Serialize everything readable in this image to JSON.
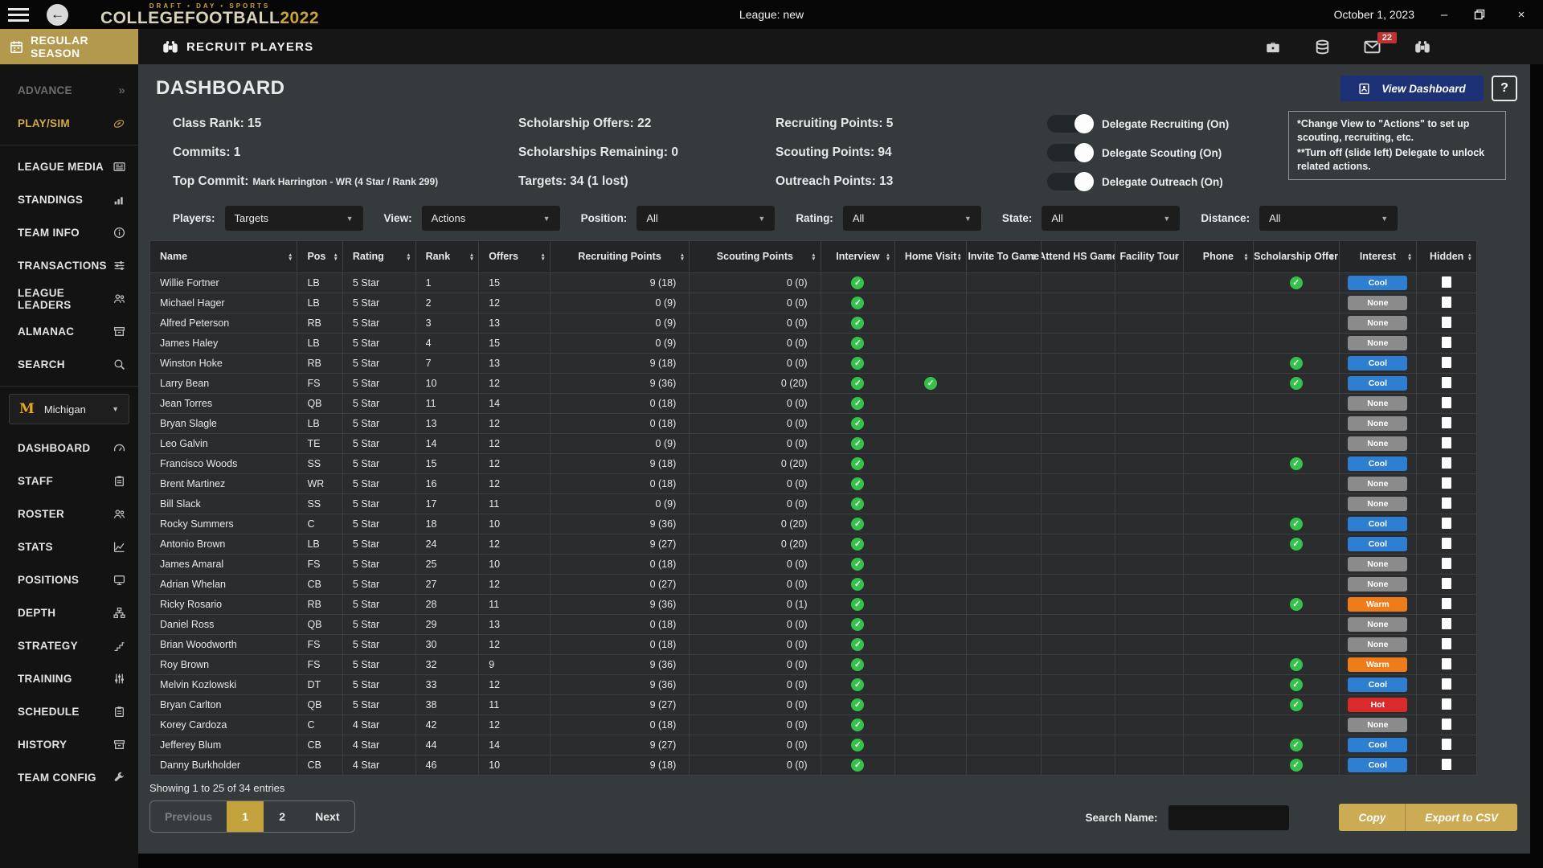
{
  "titlebar": {
    "league_title": "League: new",
    "date": "October 1, 2023"
  },
  "brand": {
    "tagline": "DRAFT • DAY • SPORTS",
    "name": "COLLEGEFOOTBALL",
    "year": "2022"
  },
  "appbar": {
    "season_label": "REGULAR SEASON",
    "page_title": "RECRUIT PLAYERS",
    "mail_badge": "22"
  },
  "sidebar": {
    "advance_label": "ADVANCE",
    "playsim_label": "PLAY/SIM",
    "league_items": [
      {
        "label": "LEAGUE MEDIA",
        "icon": "newspaper-icon"
      },
      {
        "label": "STANDINGS",
        "icon": "bar-chart-icon"
      },
      {
        "label": "TEAM INFO",
        "icon": "info-icon"
      },
      {
        "label": "TRANSACTIONS",
        "icon": "sliders-icon"
      },
      {
        "label": "LEAGUE LEADERS",
        "icon": "people-icon"
      },
      {
        "label": "ALMANAC",
        "icon": "archive-icon"
      },
      {
        "label": "SEARCH",
        "icon": "search-icon"
      }
    ],
    "team_select": {
      "team": "Michigan",
      "logo_letter": "M"
    },
    "team_items": [
      {
        "label": "DASHBOARD",
        "icon": "gauge-icon"
      },
      {
        "label": "STAFF",
        "icon": "clipboard-icon"
      },
      {
        "label": "ROSTER",
        "icon": "people-icon"
      },
      {
        "label": "STATS",
        "icon": "chart-icon"
      },
      {
        "label": "POSITIONS",
        "icon": "monitor-icon"
      },
      {
        "label": "DEPTH",
        "icon": "sitemap-icon"
      },
      {
        "label": "STRATEGY",
        "icon": "strategy-icon"
      },
      {
        "label": "TRAINING",
        "icon": "sliders-vertical-icon"
      },
      {
        "label": "SCHEDULE",
        "icon": "clipboard-icon"
      },
      {
        "label": "HISTORY",
        "icon": "archive-icon"
      },
      {
        "label": "TEAM CONFIG",
        "icon": "wrench-icon"
      }
    ]
  },
  "dashboard": {
    "title": "DASHBOARD",
    "view_dashboard_label": "View Dashboard",
    "help_label": "?",
    "stats_col1": [
      {
        "label": "Class Rank",
        "value": "15"
      },
      {
        "label": "Commits",
        "value": "1"
      },
      {
        "label": "Top Commit",
        "value": "Mark Harrington - WR (4 Star / Rank 299)",
        "small_value": true
      }
    ],
    "stats_col2": [
      {
        "label": "Scholarship Offers",
        "value": "22"
      },
      {
        "label": "Scholarships Remaining",
        "value": "0"
      },
      {
        "label": "Targets",
        "value": "34 (1 lost)"
      }
    ],
    "stats_col3": [
      {
        "label": "Recruiting Points",
        "value": "5"
      },
      {
        "label": "Scouting Points",
        "value": "94"
      },
      {
        "label": "Outreach Points",
        "value": "13"
      }
    ],
    "toggles": [
      {
        "label": "Delegate Recruiting (On)",
        "on": true
      },
      {
        "label": "Delegate Scouting (On)",
        "on": true
      },
      {
        "label": "Delegate Outreach (On)",
        "on": true
      }
    ],
    "notes": [
      "*Change View to \"Actions\" to set up scouting, recruiting, etc.",
      "**Turn off (slide left) Delegate to unlock related actions."
    ]
  },
  "filters": [
    {
      "label": "Players:",
      "value": "Targets"
    },
    {
      "label": "View:",
      "value": "Actions"
    },
    {
      "label": "Position:",
      "value": "All"
    },
    {
      "label": "Rating:",
      "value": "All"
    },
    {
      "label": "State:",
      "value": "All"
    },
    {
      "label": "Distance:",
      "value": "All"
    }
  ],
  "table": {
    "columns": [
      "Name",
      "Pos",
      "Rating",
      "Rank",
      "Offers",
      "Recruiting Points",
      "Scouting Points",
      "Interview",
      "Home Visit",
      "Invite To Game",
      "Attend HS Game",
      "Facility Tour",
      "Phone",
      "Scholarship Offer",
      "Interest",
      "Hidden"
    ],
    "check_color": "#35c24b",
    "interest_colors": {
      "Cool": "#2e7fd1",
      "None": "#8b8b8b",
      "Warm": "#ee7c1b",
      "Hot": "#d92b2b"
    },
    "rows": [
      {
        "name": "Willie Fortner",
        "pos": "LB",
        "rating": "5 Star",
        "rank": "1",
        "offers": "15",
        "recruiting": "9 (18)",
        "scouting": "0 (0)",
        "interview": true,
        "home_visit": false,
        "invite_to_game": false,
        "attend_hs_game": false,
        "facility_tour": false,
        "phone": false,
        "scholarship_offer": true,
        "interest": "Cool",
        "hidden": false
      },
      {
        "name": "Michael Hager",
        "pos": "LB",
        "rating": "5 Star",
        "rank": "2",
        "offers": "12",
        "recruiting": "0 (9)",
        "scouting": "0 (0)",
        "interview": true,
        "home_visit": false,
        "invite_to_game": false,
        "attend_hs_game": false,
        "facility_tour": false,
        "phone": false,
        "scholarship_offer": false,
        "interest": "None",
        "hidden": false
      },
      {
        "name": "Alfred Peterson",
        "pos": "RB",
        "rating": "5 Star",
        "rank": "3",
        "offers": "13",
        "recruiting": "0 (9)",
        "scouting": "0 (0)",
        "interview": true,
        "home_visit": false,
        "invite_to_game": false,
        "attend_hs_game": false,
        "facility_tour": false,
        "phone": false,
        "scholarship_offer": false,
        "interest": "None",
        "hidden": false
      },
      {
        "name": "James Haley",
        "pos": "LB",
        "rating": "5 Star",
        "rank": "4",
        "offers": "15",
        "recruiting": "0 (9)",
        "scouting": "0 (0)",
        "interview": true,
        "home_visit": false,
        "invite_to_game": false,
        "attend_hs_game": false,
        "facility_tour": false,
        "phone": false,
        "scholarship_offer": false,
        "interest": "None",
        "hidden": false
      },
      {
        "name": "Winston Hoke",
        "pos": "RB",
        "rating": "5 Star",
        "rank": "7",
        "offers": "13",
        "recruiting": "9 (18)",
        "scouting": "0 (0)",
        "interview": true,
        "home_visit": false,
        "invite_to_game": false,
        "attend_hs_game": false,
        "facility_tour": false,
        "phone": false,
        "scholarship_offer": true,
        "interest": "Cool",
        "hidden": false
      },
      {
        "name": "Larry Bean",
        "pos": "FS",
        "rating": "5 Star",
        "rank": "10",
        "offers": "12",
        "recruiting": "9 (36)",
        "scouting": "0 (20)",
        "interview": true,
        "home_visit": true,
        "invite_to_game": false,
        "attend_hs_game": false,
        "facility_tour": false,
        "phone": false,
        "scholarship_offer": true,
        "interest": "Cool",
        "hidden": false
      },
      {
        "name": "Jean Torres",
        "pos": "QB",
        "rating": "5 Star",
        "rank": "11",
        "offers": "14",
        "recruiting": "0 (18)",
        "scouting": "0 (0)",
        "interview": true,
        "home_visit": false,
        "invite_to_game": false,
        "attend_hs_game": false,
        "facility_tour": false,
        "phone": false,
        "scholarship_offer": false,
        "interest": "None",
        "hidden": false
      },
      {
        "name": "Bryan Slagle",
        "pos": "LB",
        "rating": "5 Star",
        "rank": "13",
        "offers": "12",
        "recruiting": "0 (18)",
        "scouting": "0 (0)",
        "interview": true,
        "home_visit": false,
        "invite_to_game": false,
        "attend_hs_game": false,
        "facility_tour": false,
        "phone": false,
        "scholarship_offer": false,
        "interest": "None",
        "hidden": false
      },
      {
        "name": "Leo Galvin",
        "pos": "TE",
        "rating": "5 Star",
        "rank": "14",
        "offers": "12",
        "recruiting": "0 (9)",
        "scouting": "0 (0)",
        "interview": true,
        "home_visit": false,
        "invite_to_game": false,
        "attend_hs_game": false,
        "facility_tour": false,
        "phone": false,
        "scholarship_offer": false,
        "interest": "None",
        "hidden": false
      },
      {
        "name": "Francisco Woods",
        "pos": "SS",
        "rating": "5 Star",
        "rank": "15",
        "offers": "12",
        "recruiting": "9 (18)",
        "scouting": "0 (20)",
        "interview": true,
        "home_visit": false,
        "invite_to_game": false,
        "attend_hs_game": false,
        "facility_tour": false,
        "phone": false,
        "scholarship_offer": true,
        "interest": "Cool",
        "hidden": false
      },
      {
        "name": "Brent Martinez",
        "pos": "WR",
        "rating": "5 Star",
        "rank": "16",
        "offers": "12",
        "recruiting": "0 (18)",
        "scouting": "0 (0)",
        "interview": true,
        "home_visit": false,
        "invite_to_game": false,
        "attend_hs_game": false,
        "facility_tour": false,
        "phone": false,
        "scholarship_offer": false,
        "interest": "None",
        "hidden": false
      },
      {
        "name": "Bill Slack",
        "pos": "SS",
        "rating": "5 Star",
        "rank": "17",
        "offers": "11",
        "recruiting": "0 (9)",
        "scouting": "0 (0)",
        "interview": true,
        "home_visit": false,
        "invite_to_game": false,
        "attend_hs_game": false,
        "facility_tour": false,
        "phone": false,
        "scholarship_offer": false,
        "interest": "None",
        "hidden": false
      },
      {
        "name": "Rocky Summers",
        "pos": "C",
        "rating": "5 Star",
        "rank": "18",
        "offers": "10",
        "recruiting": "9 (36)",
        "scouting": "0 (20)",
        "interview": true,
        "home_visit": false,
        "invite_to_game": false,
        "attend_hs_game": false,
        "facility_tour": false,
        "phone": false,
        "scholarship_offer": true,
        "interest": "Cool",
        "hidden": false
      },
      {
        "name": "Antonio Brown",
        "pos": "LB",
        "rating": "5 Star",
        "rank": "24",
        "offers": "12",
        "recruiting": "9 (27)",
        "scouting": "0 (20)",
        "interview": true,
        "home_visit": false,
        "invite_to_game": false,
        "attend_hs_game": false,
        "facility_tour": false,
        "phone": false,
        "scholarship_offer": true,
        "interest": "Cool",
        "hidden": false
      },
      {
        "name": "James Amaral",
        "pos": "FS",
        "rating": "5 Star",
        "rank": "25",
        "offers": "10",
        "recruiting": "0 (18)",
        "scouting": "0 (0)",
        "interview": true,
        "home_visit": false,
        "invite_to_game": false,
        "attend_hs_game": false,
        "facility_tour": false,
        "phone": false,
        "scholarship_offer": false,
        "interest": "None",
        "hidden": false
      },
      {
        "name": "Adrian Whelan",
        "pos": "CB",
        "rating": "5 Star",
        "rank": "27",
        "offers": "12",
        "recruiting": "0 (27)",
        "scouting": "0 (0)",
        "interview": true,
        "home_visit": false,
        "invite_to_game": false,
        "attend_hs_game": false,
        "facility_tour": false,
        "phone": false,
        "scholarship_offer": false,
        "interest": "None",
        "hidden": false
      },
      {
        "name": "Ricky Rosario",
        "pos": "RB",
        "rating": "5 Star",
        "rank": "28",
        "offers": "11",
        "recruiting": "9 (36)",
        "scouting": "0 (1)",
        "interview": true,
        "home_visit": false,
        "invite_to_game": false,
        "attend_hs_game": false,
        "facility_tour": false,
        "phone": false,
        "scholarship_offer": true,
        "interest": "Warm",
        "hidden": false
      },
      {
        "name": "Daniel Ross",
        "pos": "QB",
        "rating": "5 Star",
        "rank": "29",
        "offers": "13",
        "recruiting": "0 (18)",
        "scouting": "0 (0)",
        "interview": true,
        "home_visit": false,
        "invite_to_game": false,
        "attend_hs_game": false,
        "facility_tour": false,
        "phone": false,
        "scholarship_offer": false,
        "interest": "None",
        "hidden": false
      },
      {
        "name": "Brian Woodworth",
        "pos": "FS",
        "rating": "5 Star",
        "rank": "30",
        "offers": "12",
        "recruiting": "0 (18)",
        "scouting": "0 (0)",
        "interview": true,
        "home_visit": false,
        "invite_to_game": false,
        "attend_hs_game": false,
        "facility_tour": false,
        "phone": false,
        "scholarship_offer": false,
        "interest": "None",
        "hidden": false
      },
      {
        "name": "Roy Brown",
        "pos": "FS",
        "rating": "5 Star",
        "rank": "32",
        "offers": "9",
        "recruiting": "9 (36)",
        "scouting": "0 (0)",
        "interview": true,
        "home_visit": false,
        "invite_to_game": false,
        "attend_hs_game": false,
        "facility_tour": false,
        "phone": false,
        "scholarship_offer": true,
        "interest": "Warm",
        "hidden": false
      },
      {
        "name": "Melvin Kozlowski",
        "pos": "DT",
        "rating": "5 Star",
        "rank": "33",
        "offers": "12",
        "recruiting": "9 (36)",
        "scouting": "0 (0)",
        "interview": true,
        "home_visit": false,
        "invite_to_game": false,
        "attend_hs_game": false,
        "facility_tour": false,
        "phone": false,
        "scholarship_offer": true,
        "interest": "Cool",
        "hidden": false
      },
      {
        "name": "Bryan Carlton",
        "pos": "QB",
        "rating": "5 Star",
        "rank": "38",
        "offers": "11",
        "recruiting": "9 (27)",
        "scouting": "0 (0)",
        "interview": true,
        "home_visit": false,
        "invite_to_game": false,
        "attend_hs_game": false,
        "facility_tour": false,
        "phone": false,
        "scholarship_offer": true,
        "interest": "Hot",
        "hidden": false
      },
      {
        "name": "Korey Cardoza",
        "pos": "C",
        "rating": "4 Star",
        "rank": "42",
        "offers": "12",
        "recruiting": "0 (18)",
        "scouting": "0 (0)",
        "interview": true,
        "home_visit": false,
        "invite_to_game": false,
        "attend_hs_game": false,
        "facility_tour": false,
        "phone": false,
        "scholarship_offer": false,
        "interest": "None",
        "hidden": false
      },
      {
        "name": "Jefferey Blum",
        "pos": "CB",
        "rating": "4 Star",
        "rank": "44",
        "offers": "14",
        "recruiting": "9 (27)",
        "scouting": "0 (0)",
        "interview": true,
        "home_visit": false,
        "invite_to_game": false,
        "attend_hs_game": false,
        "facility_tour": false,
        "phone": false,
        "scholarship_offer": true,
        "interest": "Cool",
        "hidden": false
      },
      {
        "name": "Danny Burkholder",
        "pos": "CB",
        "rating": "4 Star",
        "rank": "46",
        "offers": "10",
        "recruiting": "9 (18)",
        "scouting": "0 (0)",
        "interview": true,
        "home_visit": false,
        "invite_to_game": false,
        "attend_hs_game": false,
        "facility_tour": false,
        "phone": false,
        "scholarship_offer": true,
        "interest": "Cool",
        "hidden": false
      }
    ]
  },
  "footer": {
    "showing": "Showing 1 to 25 of 34 entries",
    "pagination": [
      "Previous",
      "1",
      "2",
      "Next"
    ],
    "active_page": "1",
    "search_label": "Search Name:",
    "copy_label": "Copy",
    "export_label": "Export to CSV"
  }
}
